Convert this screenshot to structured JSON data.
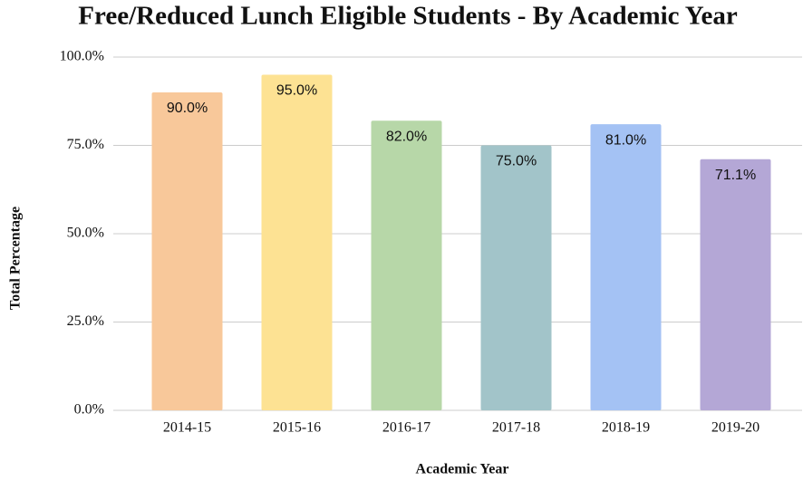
{
  "chart_data": {
    "type": "bar",
    "title": "Free/Reduced Lunch Eligible Students - By Academic Year",
    "x_label": "Academic Year",
    "y_label": "Total Percentage",
    "categories": [
      "2014-15",
      "2015-16",
      "2016-17",
      "2017-18",
      "2018-19",
      "2019-20"
    ],
    "values": [
      90,
      95,
      82,
      75,
      81,
      71.1
    ],
    "value_labels": [
      "90.0%",
      "95.0%",
      "82.0%",
      "75.0%",
      "81.0%",
      "71.1%"
    ],
    "colors": [
      "#f8c89a",
      "#fde293",
      "#b7d7a8",
      "#a2c4c9",
      "#a4c2f4",
      "#b4a7d6"
    ],
    "ylim": [
      0,
      100
    ],
    "yticks": [
      {
        "value": 0,
        "label": "0.0%"
      },
      {
        "value": 25,
        "label": "25.0%"
      },
      {
        "value": 50,
        "label": "50.0%"
      },
      {
        "value": 75,
        "label": "75.0%"
      },
      {
        "value": 100,
        "label": "100.0%"
      }
    ],
    "grid": true
  }
}
